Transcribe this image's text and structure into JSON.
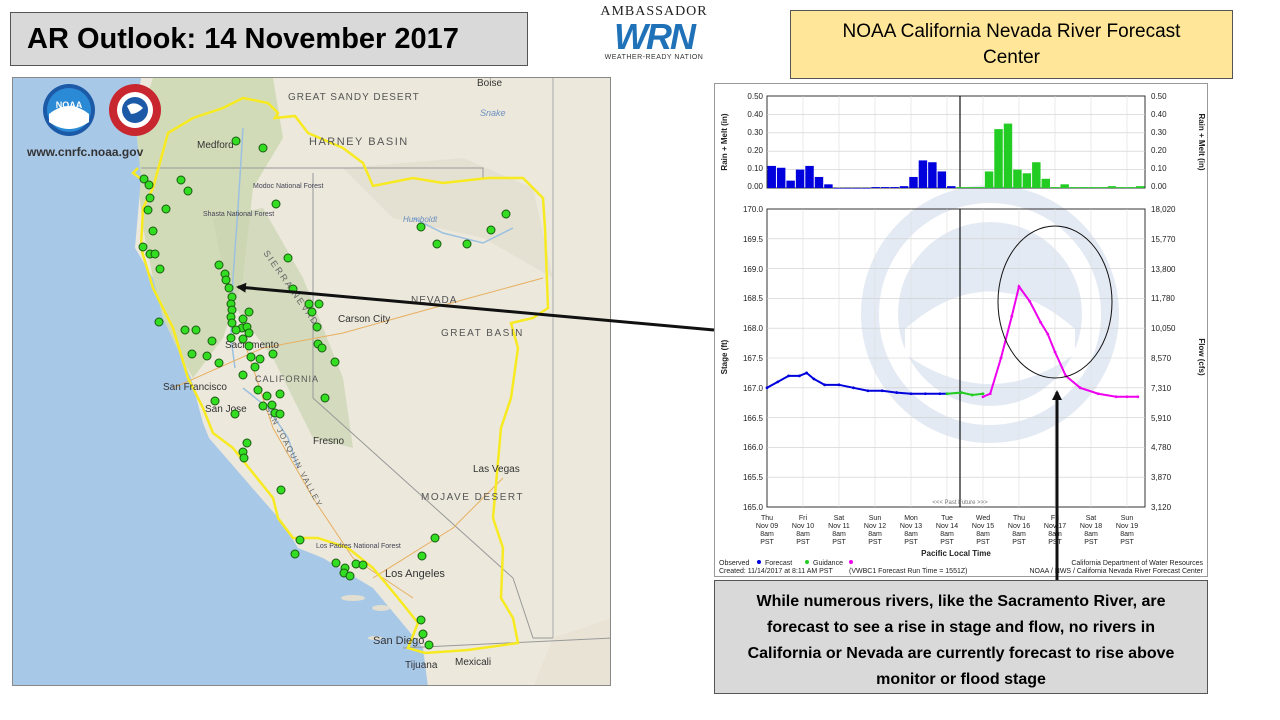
{
  "header": {
    "title": "AR Outlook: 14 November 2017",
    "center_line1": "NOAA California Nevada River Forecast",
    "center_line2": "Center"
  },
  "logo": {
    "ambassador": "AMBASSADOR",
    "wrn": "WRN",
    "wrn_sub": "WEATHER-READY NATION"
  },
  "map": {
    "url": "www.cnrfc.noaa.gov",
    "noaa_logo": "NOAA",
    "labels": {
      "great_sandy_desert": "GREAT SANDY DESERT",
      "harney_basin": "HARNEY BASIN",
      "boise": "Boise",
      "medford": "Medford",
      "modoc": "Modoc National Forest",
      "shasta": "Shasta National Forest",
      "nevada": "NEVADA",
      "carson_city": "Carson City",
      "great_basin": "GREAT BASIN",
      "sacramento": "Sacramento",
      "california": "CALIFORNIA",
      "san_francisco": "San Francisco",
      "san_jose": "San Jose",
      "fresno": "Fresno",
      "sierra_nevada": "SIERRA NEVADA",
      "san_joaquin": "SAN JOAQUIN VALLEY",
      "las_vegas": "Las Vegas",
      "mojave": "MOJAVE DESERT",
      "los_padres": "Los Padres National Forest",
      "los_angeles": "Los Angeles",
      "san_diego": "San Diego",
      "tijuana": "Tijuana",
      "mexicali": "Mexicali",
      "snake": "Snake",
      "humboldt": "Humboldt"
    }
  },
  "hydrograph": {
    "precip_axis_label": "Rain + Melt (in)",
    "precip_ticks": [
      "0.50",
      "0.40",
      "0.30",
      "0.20",
      "0.10",
      "0.00"
    ],
    "stage_axis_label": "Stage (ft)",
    "stage_ticks": [
      "170.0",
      "169.5",
      "169.0",
      "168.5",
      "168.0",
      "167.5",
      "167.0",
      "166.5",
      "166.0",
      "165.5",
      "165.0"
    ],
    "flow_axis_label": "Flow (cfs)",
    "flow_ticks": [
      "18,020",
      "15,770",
      "13,800",
      "11,780",
      "10,050",
      "8,570",
      "7,310",
      "5,910",
      "4,780",
      "3,870",
      "3,120"
    ],
    "x_ticks": [
      {
        "day": "Thu",
        "date": "Nov 09",
        "time": "8am",
        "tz": "PST"
      },
      {
        "day": "Fri",
        "date": "Nov 10",
        "time": "8am",
        "tz": "PST"
      },
      {
        "day": "Sat",
        "date": "Nov 11",
        "time": "8am",
        "tz": "PST"
      },
      {
        "day": "Sun",
        "date": "Nov 12",
        "time": "8am",
        "tz": "PST"
      },
      {
        "day": "Mon",
        "date": "Nov 13",
        "time": "8am",
        "tz": "PST"
      },
      {
        "day": "Tue",
        "date": "Nov 14",
        "time": "8am",
        "tz": "PST"
      },
      {
        "day": "Wed",
        "date": "Nov 15",
        "time": "8am",
        "tz": "PST"
      },
      {
        "day": "Thu",
        "date": "Nov 16",
        "time": "8am",
        "tz": "PST"
      },
      {
        "day": "Fri",
        "date": "Nov 17",
        "time": "8am",
        "tz": "PST"
      },
      {
        "day": "Sat",
        "date": "Nov 18",
        "time": "8am",
        "tz": "PST"
      },
      {
        "day": "Sun",
        "date": "Nov 19",
        "time": "8am",
        "tz": "PST"
      }
    ],
    "x_axis_label": "Pacific Local Time",
    "past_future": "<<< Past  Future >>>",
    "legend": {
      "observed": "Observed",
      "forecast": "Forecast",
      "guidance": "Guidance"
    },
    "created": "Created: 11/14/2017 at 8:11 AM PST",
    "run_time": "(VWBC1 Forecast Run Time = 1551Z)",
    "credit1": "California Department of Water Resources",
    "credit2": "NOAA / NWS / California Nevada River Forecast Center",
    "colors": {
      "observed": "#0000dd",
      "guidance": "#22cc22",
      "forecast": "#ee00ee"
    }
  },
  "note": {
    "text": "While numerous rivers, like the Sacramento River, are forecast to see a rise in stage and flow, no rivers in California or Nevada are currently forecast to rise above monitor or flood stage"
  },
  "chart_data": {
    "type": "line",
    "title": "",
    "xlabel": "Pacific Local Time",
    "ylabel": "Stage (ft)",
    "y2label": "Flow (cfs)",
    "ylim": [
      165.0,
      170.0
    ],
    "precip": {
      "ylabel": "Rain + Melt (in)",
      "ylim": [
        0,
        0.5
      ],
      "observed": [
        0.12,
        0.11,
        0.04,
        0.1,
        0.12,
        0.06,
        0.02,
        0,
        0,
        0,
        0,
        0.005,
        0.005,
        0.005,
        0.01,
        0.06,
        0.15,
        0.14,
        0.09,
        0.01
      ],
      "guidance": [
        0.005,
        0.005,
        0.005,
        0.09,
        0.32,
        0.35,
        0.1,
        0.08,
        0.14,
        0.05,
        0.005,
        0.02,
        0.005,
        0.005,
        0.005,
        0.005,
        0.01,
        0.005,
        0.005,
        0.01
      ]
    },
    "series": [
      {
        "name": "Observed",
        "x": [
          0,
          0.3,
          0.6,
          0.9,
          1.1,
          1.3,
          1.6,
          2.0,
          2.4,
          2.8,
          3.2,
          3.6,
          4.0,
          4.4,
          4.8,
          5.0
        ],
        "y": [
          167.0,
          167.1,
          167.2,
          167.2,
          167.25,
          167.15,
          167.05,
          167.05,
          167.0,
          166.95,
          166.95,
          166.92,
          166.9,
          166.9,
          166.9,
          166.9
        ]
      },
      {
        "name": "Guidance",
        "x": [
          5.0,
          5.4,
          5.7,
          6.0
        ],
        "y": [
          166.9,
          166.92,
          166.88,
          166.9
        ]
      },
      {
        "name": "Forecast",
        "x": [
          6.0,
          6.2,
          6.5,
          6.8,
          7.0,
          7.3,
          7.6,
          7.8,
          8.0,
          8.3,
          8.7,
          9.2,
          9.7,
          10.0,
          10.3
        ],
        "y": [
          166.85,
          166.9,
          167.5,
          168.2,
          168.7,
          168.45,
          168.1,
          167.9,
          167.6,
          167.2,
          167.0,
          166.9,
          166.85,
          166.85,
          166.85
        ]
      }
    ]
  }
}
